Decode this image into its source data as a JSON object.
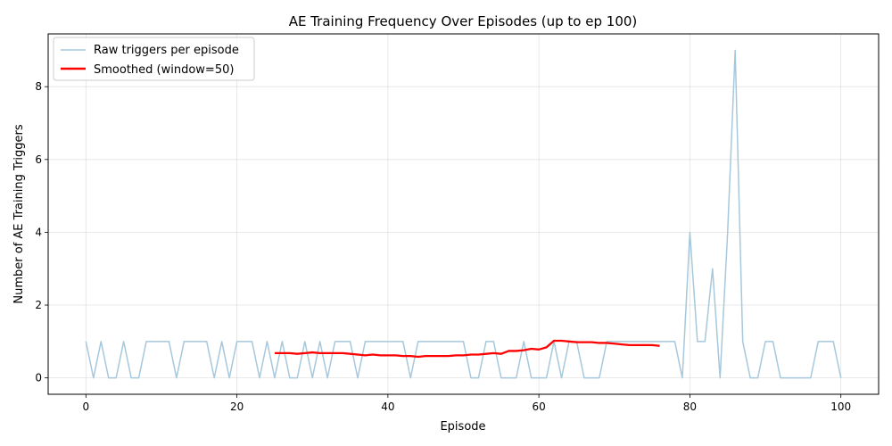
{
  "chart_data": {
    "type": "line",
    "title": "AE Training Frequency Over Episodes (up to ep 100)",
    "xlabel": "Episode",
    "ylabel": "Number of AE Training Triggers",
    "xlim": [
      -5,
      105
    ],
    "ylim": [
      -0.45,
      9.45
    ],
    "xticks": [
      0,
      20,
      40,
      60,
      80,
      100
    ],
    "yticks": [
      0,
      2,
      4,
      6,
      8
    ],
    "grid": true,
    "legend_position": "upper left",
    "series": [
      {
        "name": "Raw triggers per episode",
        "color": "#a6c8dc",
        "x": [
          0,
          1,
          2,
          3,
          4,
          5,
          6,
          7,
          8,
          9,
          10,
          11,
          12,
          13,
          14,
          15,
          16,
          17,
          18,
          19,
          20,
          21,
          22,
          23,
          24,
          25,
          26,
          27,
          28,
          29,
          30,
          31,
          32,
          33,
          34,
          35,
          36,
          37,
          38,
          39,
          40,
          41,
          42,
          43,
          44,
          45,
          46,
          47,
          48,
          49,
          50,
          51,
          52,
          53,
          54,
          55,
          56,
          57,
          58,
          59,
          60,
          61,
          62,
          63,
          64,
          65,
          66,
          67,
          68,
          69,
          70,
          71,
          72,
          73,
          74,
          75,
          76,
          77,
          78,
          79,
          80,
          81,
          82,
          83,
          84,
          85,
          86,
          87,
          88,
          89,
          90,
          91,
          92,
          93,
          94,
          95,
          96,
          97,
          98,
          99,
          100
        ],
        "y": [
          1,
          0,
          1,
          0,
          0,
          1,
          0,
          0,
          1,
          1,
          1,
          1,
          0,
          1,
          1,
          1,
          1,
          0,
          1,
          0,
          1,
          1,
          1,
          0,
          1,
          0,
          1,
          0,
          0,
          1,
          0,
          1,
          0,
          1,
          1,
          1,
          0,
          1,
          1,
          1,
          1,
          1,
          1,
          0,
          1,
          1,
          1,
          1,
          1,
          1,
          1,
          0,
          0,
          1,
          1,
          0,
          0,
          0,
          1,
          0,
          0,
          0,
          1,
          0,
          1,
          1,
          0,
          0,
          0,
          1,
          1,
          1,
          1,
          1,
          1,
          1,
          1,
          1,
          1,
          0,
          4,
          1,
          1,
          3,
          0,
          4,
          9,
          1,
          0,
          0,
          1,
          1,
          0,
          0,
          0,
          0,
          0,
          1,
          1,
          1,
          0
        ]
      },
      {
        "name": "Smoothed (window=50)",
        "color": "#ff0000",
        "x": [
          25,
          26,
          27,
          28,
          29,
          30,
          31,
          32,
          33,
          34,
          35,
          36,
          37,
          38,
          39,
          40,
          41,
          42,
          43,
          44,
          45,
          46,
          47,
          48,
          49,
          50,
          51,
          52,
          53,
          54,
          55,
          56,
          57,
          58,
          59,
          60,
          61,
          62,
          63,
          64,
          65,
          66,
          67,
          68,
          69,
          70,
          71,
          72,
          73,
          74,
          75,
          76
        ],
        "y": [
          0.68,
          0.68,
          0.68,
          0.66,
          0.68,
          0.7,
          0.68,
          0.68,
          0.68,
          0.68,
          0.66,
          0.64,
          0.62,
          0.64,
          0.62,
          0.62,
          0.62,
          0.6,
          0.6,
          0.58,
          0.6,
          0.6,
          0.6,
          0.6,
          0.62,
          0.62,
          0.64,
          0.64,
          0.66,
          0.68,
          0.66,
          0.74,
          0.74,
          0.76,
          0.8,
          0.78,
          0.84,
          1.02,
          1.02,
          1.0,
          0.98,
          0.98,
          0.98,
          0.96,
          0.96,
          0.94,
          0.92,
          0.9,
          0.9,
          0.9,
          0.9,
          0.88
        ]
      }
    ]
  }
}
